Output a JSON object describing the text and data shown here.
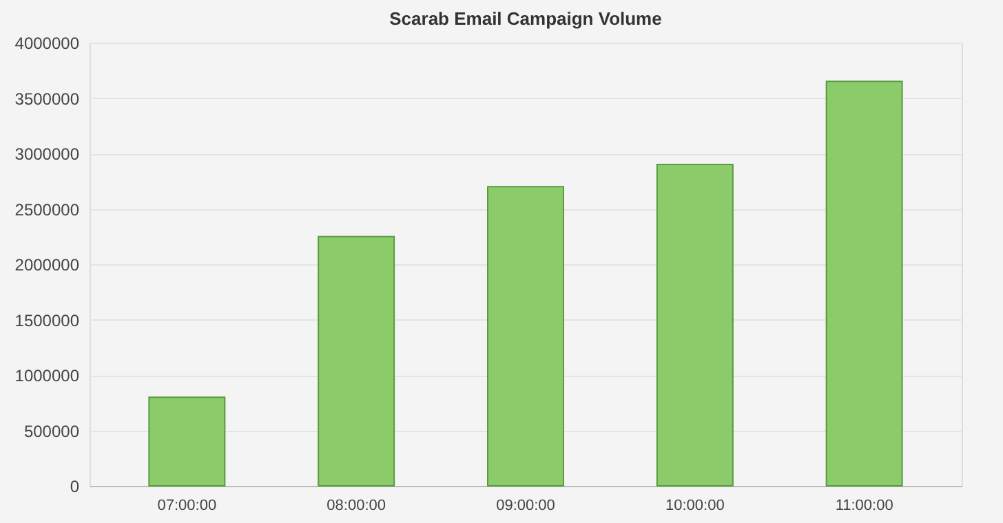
{
  "chart_data": {
    "type": "bar",
    "title": "Scarab Email Campaign Volume",
    "categories": [
      "07:00:00",
      "08:00:00",
      "09:00:00",
      "10:00:00",
      "11:00:00"
    ],
    "values": [
      800000,
      2250000,
      2700000,
      2900000,
      3650000
    ],
    "color": "#8ccb6a",
    "ylim": [
      0,
      4000000
    ],
    "yticks": [
      0,
      500000,
      1000000,
      1500000,
      2000000,
      2500000,
      3000000,
      3500000,
      4000000
    ],
    "grid": "y"
  }
}
